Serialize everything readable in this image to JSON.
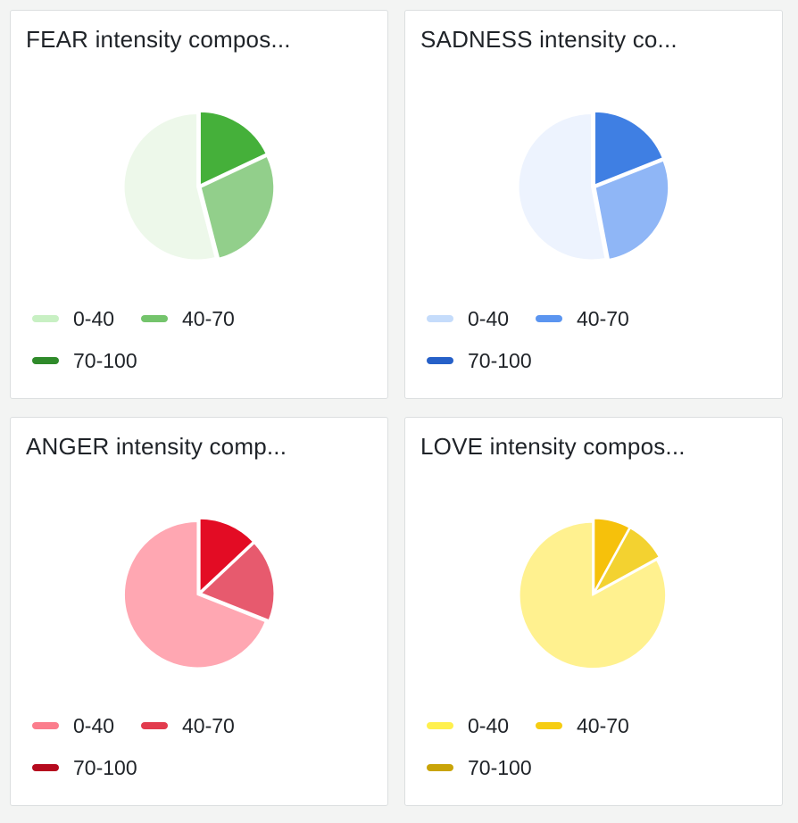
{
  "chart_data": [
    {
      "type": "pie",
      "title": "FEAR intensity compos...",
      "legend": [
        "0-40",
        "40-70",
        "70-100"
      ],
      "values": [
        54,
        28,
        18
      ],
      "colors": {
        "slices": [
          "#edf8ea",
          "#92cf8b",
          "#45b03a"
        ],
        "legend": [
          "#c8f0c3",
          "#74c46c",
          "#2f8a2a"
        ]
      }
    },
    {
      "type": "pie",
      "title": "SADNESS intensity co...",
      "legend": [
        "0-40",
        "40-70",
        "70-100"
      ],
      "values": [
        53,
        28,
        19
      ],
      "colors": {
        "slices": [
          "#edf3fe",
          "#8fb6f6",
          "#3f7fe3"
        ],
        "legend": [
          "#c5dcfb",
          "#5b95f0",
          "#2660c8"
        ]
      }
    },
    {
      "type": "pie",
      "title": "ANGER intensity comp...",
      "legend": [
        "0-40",
        "40-70",
        "70-100"
      ],
      "values": [
        69,
        18,
        13
      ],
      "colors": {
        "slices": [
          "#ffa7b2",
          "#e75a6e",
          "#e30c24"
        ],
        "legend": [
          "#fb7d8c",
          "#e23b4d",
          "#b50a1e"
        ]
      }
    },
    {
      "type": "pie",
      "title": "LOVE intensity compos...",
      "legend": [
        "0-40",
        "40-70",
        "70-100"
      ],
      "values": [
        83,
        9,
        8
      ],
      "colors": {
        "slices": [
          "#fff18f",
          "#f3d230",
          "#f6c10b"
        ],
        "legend": [
          "#fff04d",
          "#f6cd12",
          "#c9a408"
        ]
      }
    }
  ]
}
